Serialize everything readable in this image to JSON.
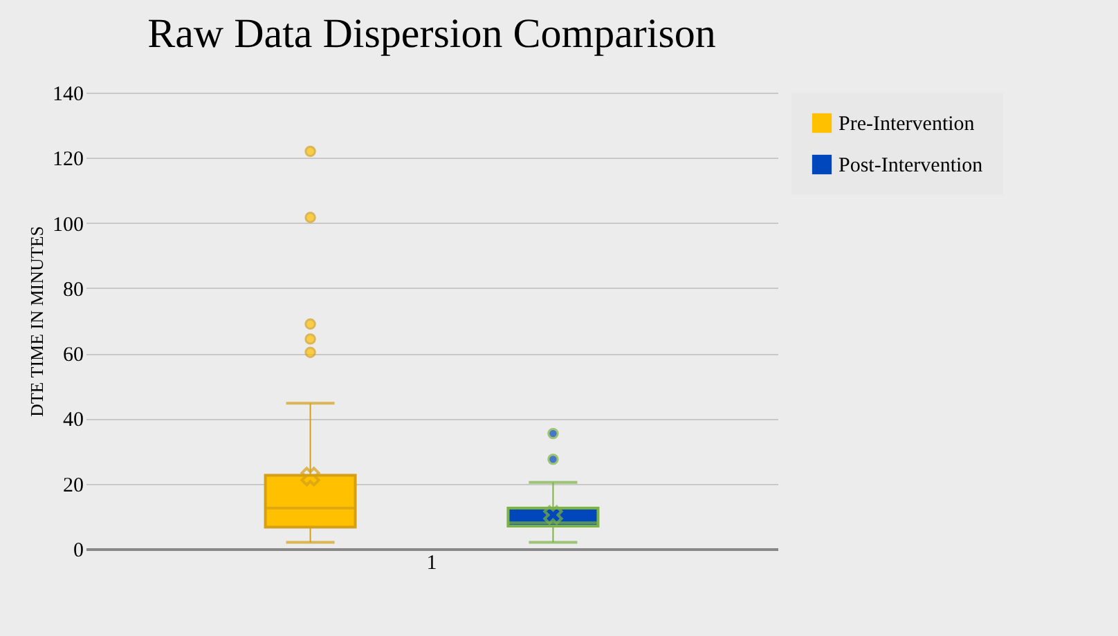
{
  "chart_data": {
    "type": "box",
    "title": "Raw Data Dispersion Comparison",
    "ylabel": "DTE TIME IN MINUTES",
    "categories": [
      "1"
    ],
    "series": [
      {
        "name": "Pre-Intervention",
        "color": "#ffc000",
        "boxes": [
          {
            "low": 2,
            "q1": 6.7,
            "median": 12.5,
            "q3": 22.6,
            "high": 44.7,
            "mean": 22.2,
            "outliers": [
              60.3,
              64.4,
              69,
              101.7,
              122
            ]
          }
        ]
      },
      {
        "name": "Post-Intervention",
        "color": "#0047bb",
        "boxes": [
          {
            "low": 2,
            "q1": 7,
            "median": 8,
            "q3": 12.5,
            "high": 20.4,
            "mean": 10.4,
            "outliers": [
              27.5,
              35.4
            ]
          }
        ]
      }
    ],
    "ylim": [
      0,
      140
    ],
    "yticks": [
      0,
      20,
      40,
      60,
      80,
      100,
      120,
      140
    ],
    "grid": "y",
    "legend": "right"
  }
}
